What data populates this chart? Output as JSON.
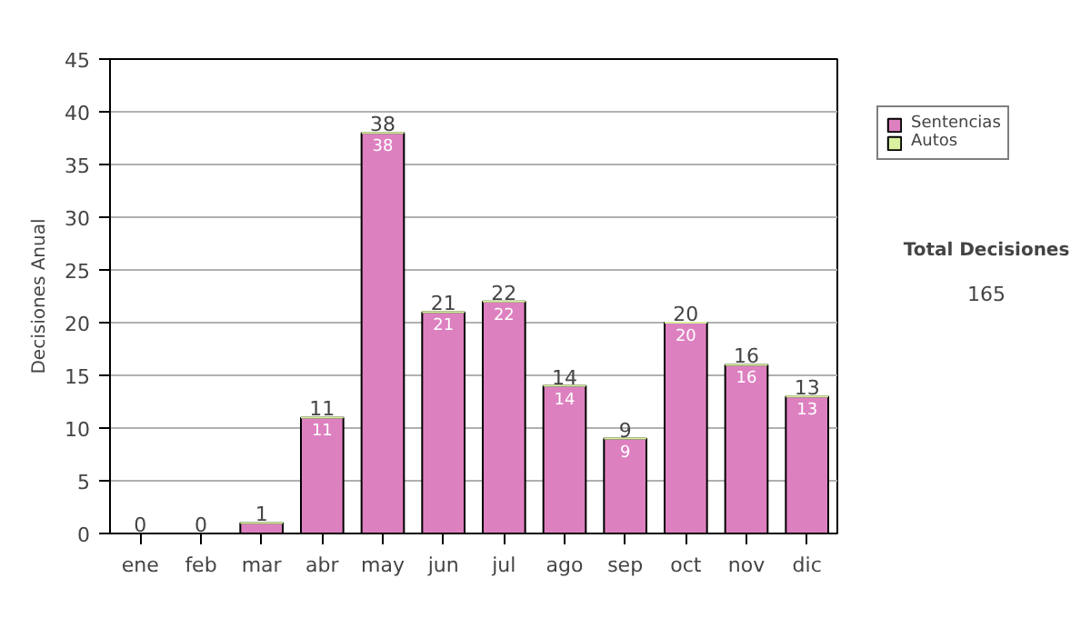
{
  "chart_data": {
    "type": "bar",
    "ylabel": "Decisiones Anual",
    "categories": [
      "ene",
      "feb",
      "mar",
      "abr",
      "may",
      "jun",
      "jul",
      "ago",
      "sep",
      "oct",
      "nov",
      "dic"
    ],
    "stacked": true,
    "series": [
      {
        "name": "Sentencias",
        "color": "#dd80c0",
        "values": [
          0,
          0,
          1,
          11,
          38,
          21,
          22,
          14,
          9,
          20,
          16,
          13
        ],
        "value_labels": [
          null,
          null,
          null,
          "11",
          "38",
          "21",
          "22",
          "14",
          "9",
          "20",
          "16",
          "13"
        ]
      },
      {
        "name": "Autos",
        "color": "#d8f0a0",
        "values": [
          0,
          0,
          0,
          0,
          0,
          0,
          0,
          0,
          0,
          0,
          0,
          0
        ]
      }
    ],
    "totals": [
      "0",
      "0",
      "1",
      "11",
      "38",
      "21",
      "22",
      "14",
      "9",
      "20",
      "16",
      "13"
    ],
    "ylim": [
      0,
      45
    ],
    "yticks": [
      0,
      5,
      10,
      15,
      20,
      25,
      30,
      35,
      40,
      45
    ],
    "grid": "y",
    "legend": "right",
    "annotations": [
      "Total Decisiones",
      "165"
    ]
  }
}
